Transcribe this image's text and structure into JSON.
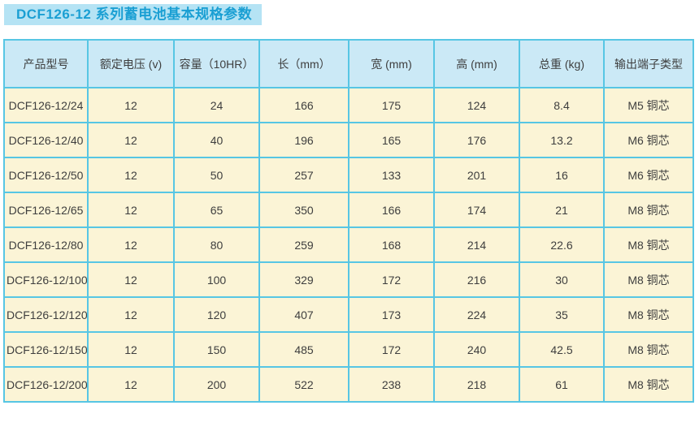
{
  "title": "DCF126-12 系列蓄电池基本规格参数",
  "colors": {
    "title_text": "#1a9fd3",
    "title_band_bg": "#b5e3f4",
    "table_border": "#57c6e4",
    "header_bg": "#cbe9f6",
    "row_bg": "#fbf4d6",
    "cell_text": "#3e3e3e"
  },
  "table": {
    "columns": [
      "产品型号",
      "额定电压 (v)",
      "容量（10HR）",
      "长（mm）",
      "宽 (mm)",
      "高 (mm)",
      "总重 (kg)",
      "输出端子类型"
    ],
    "rows": [
      [
        "DCF126-12/24",
        "12",
        "24",
        "166",
        "175",
        "124",
        "8.4",
        "M5 铜芯"
      ],
      [
        "DCF126-12/40",
        "12",
        "40",
        "196",
        "165",
        "176",
        "13.2",
        "M6 铜芯"
      ],
      [
        "DCF126-12/50",
        "12",
        "50",
        "257",
        "133",
        "201",
        "16",
        "M6 铜芯"
      ],
      [
        "DCF126-12/65",
        "12",
        "65",
        "350",
        "166",
        "174",
        "21",
        "M8 铜芯"
      ],
      [
        "DCF126-12/80",
        "12",
        "80",
        "259",
        "168",
        "214",
        "22.6",
        "M8 铜芯"
      ],
      [
        "DCF126-12/100",
        "12",
        "100",
        "329",
        "172",
        "216",
        "30",
        "M8 铜芯"
      ],
      [
        "DCF126-12/120",
        "12",
        "120",
        "407",
        "173",
        "224",
        "35",
        "M8 铜芯"
      ],
      [
        "DCF126-12/150",
        "12",
        "150",
        "485",
        "172",
        "240",
        "42.5",
        "M8 铜芯"
      ],
      [
        "DCF126-12/200",
        "12",
        "200",
        "522",
        "238",
        "218",
        "61",
        "M8 铜芯"
      ]
    ]
  }
}
